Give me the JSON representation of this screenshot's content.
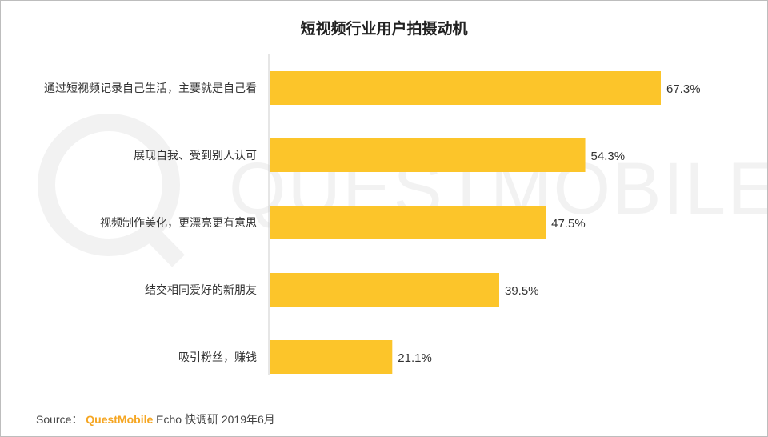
{
  "colors": {
    "bar": "#fcc52a",
    "axis": "#cccccc",
    "brand": "#f5a623",
    "watermark": "#f2f2f2"
  },
  "watermark": {
    "text": "QUESTMOBILE"
  },
  "source": {
    "prefix": "Source：",
    "brand": "QuestMobile",
    "suffix": " Echo 快调研 2019年6月"
  },
  "chart_data": {
    "type": "bar",
    "orientation": "horizontal",
    "title": "短视频行业用户拍摄动机",
    "categories": [
      "通过短视频记录自己生活，主要就是自己看",
      "展现自我、受到别人认可",
      "视频制作美化，更漂亮更有意思",
      "结交相同爱好的新朋友",
      "吸引粉丝，赚钱"
    ],
    "values": [
      67.3,
      54.3,
      47.5,
      39.5,
      21.1
    ],
    "value_labels": [
      "67.3%",
      "54.3%",
      "47.5%",
      "39.5%",
      "21.1%"
    ],
    "unit": "%",
    "xlim": [
      0,
      80
    ],
    "grid": false,
    "legend": "none"
  }
}
